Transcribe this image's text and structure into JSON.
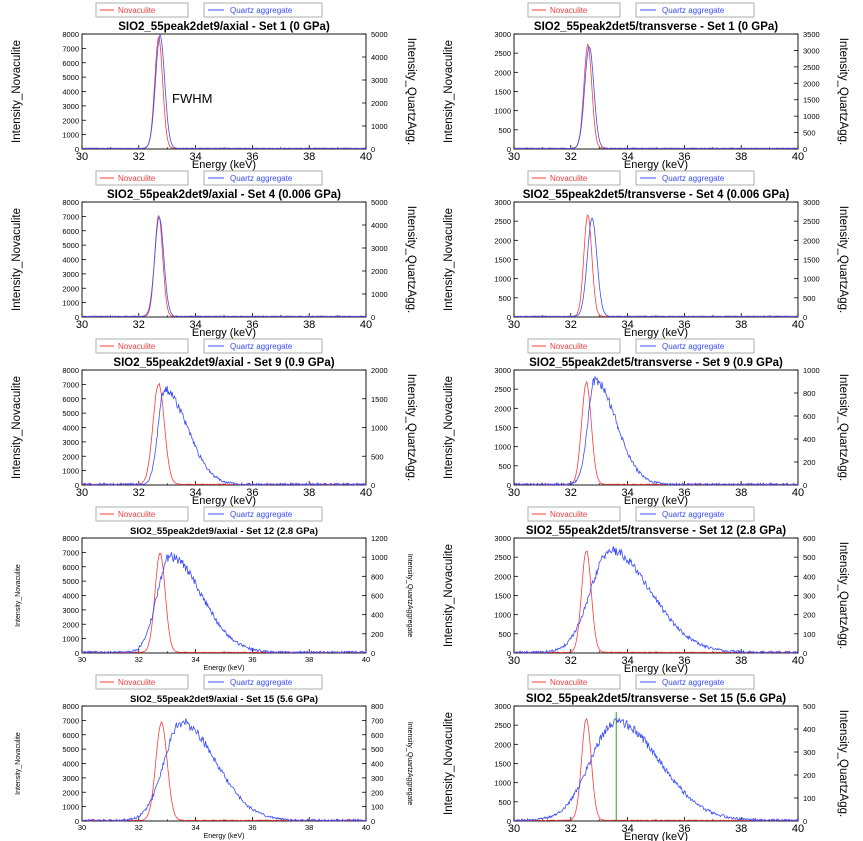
{
  "colors": {
    "novaculite": "#ff3a3a",
    "quartz": "#3a4cff",
    "fwhm": "#3a9a2a",
    "axis": "#000000"
  },
  "chart_data": [
    {
      "type": "line",
      "title": "SIO2_55peak2det9/axial - Set 1 (0 GPa)",
      "xlabel": "Energy (keV)",
      "ylabel": "Intensity_Novaculite",
      "y2label": "Intensity_QuartzAgg.",
      "xlim": [
        30,
        40
      ],
      "ylim": [
        0,
        8000
      ],
      "y2lim": [
        0,
        5000
      ],
      "x_ticks": [
        "30",
        "32",
        "34",
        "36",
        "38",
        "40"
      ],
      "y_ticks": [
        "0",
        "1000",
        "2000",
        "3000",
        "4000",
        "5000",
        "6000",
        "7000",
        "8000"
      ],
      "y2_ticks": [
        "0",
        "1000",
        "2000",
        "3000",
        "4000",
        "5000"
      ],
      "legend": [
        "Novaculite",
        "Quartz aggregate"
      ],
      "legend_position": "top",
      "annotation": "FWHM",
      "series": [
        {
          "name": "Novaculite",
          "axis": "left",
          "shape": "peak",
          "center": 32.7,
          "width": 0.14,
          "peak": 7700
        },
        {
          "name": "Quartz aggregate",
          "axis": "right",
          "shape": "peak",
          "center": 32.75,
          "width": 0.16,
          "peak": 4900
        }
      ]
    },
    {
      "type": "line",
      "title": "SIO2_55peak2det5/transverse - Set 1 (0 GPa)",
      "xlabel": "Energy (keV)",
      "ylabel": "Intensity_Novaculite",
      "y2label": "Intensity_QuartzAgg.",
      "xlim": [
        30,
        40
      ],
      "ylim": [
        0,
        3000
      ],
      "y2lim": [
        0,
        3500
      ],
      "x_ticks": [
        "30",
        "32",
        "34",
        "36",
        "38",
        "40"
      ],
      "y_ticks": [
        "0",
        "500",
        "1000",
        "1500",
        "2000",
        "2500",
        "3000"
      ],
      "y2_ticks": [
        "0",
        "500",
        "1000",
        "1500",
        "2000",
        "2500",
        "3000",
        "3500"
      ],
      "legend": [
        "Novaculite",
        "Quartz aggregate"
      ],
      "legend_position": "top",
      "series": [
        {
          "name": "Novaculite",
          "axis": "left",
          "shape": "peak",
          "center": 32.6,
          "width": 0.14,
          "peak": 2700
        },
        {
          "name": "Quartz aggregate",
          "axis": "right",
          "shape": "peak",
          "center": 32.65,
          "width": 0.16,
          "peak": 3100
        }
      ]
    },
    {
      "type": "line",
      "title": "SIO2_55peak2det9/axial - Set 4 (0.006 GPa)",
      "xlabel": "Energy (keV)",
      "ylabel": "Intensity_Novaculite",
      "y2label": "Intensity_QuartzAgg.",
      "xlim": [
        30,
        40
      ],
      "ylim": [
        0,
        8000
      ],
      "y2lim": [
        0,
        5000
      ],
      "x_ticks": [
        "30",
        "32",
        "34",
        "36",
        "38",
        "40"
      ],
      "y_ticks": [
        "0",
        "1000",
        "2000",
        "3000",
        "4000",
        "5000",
        "6000",
        "7000",
        "8000"
      ],
      "y2_ticks": [
        "0",
        "1000",
        "2000",
        "3000",
        "4000",
        "5000"
      ],
      "legend": [
        "Novaculite",
        "Quartz aggregate"
      ],
      "legend_position": "top",
      "series": [
        {
          "name": "Novaculite",
          "axis": "left",
          "shape": "peak",
          "center": 32.7,
          "width": 0.14,
          "peak": 7000
        },
        {
          "name": "Quartz aggregate",
          "axis": "right",
          "shape": "peak",
          "center": 32.72,
          "width": 0.16,
          "peak": 4300
        }
      ]
    },
    {
      "type": "line",
      "title": "SIO2_55peak2det5/transverse - Set 4 (0.006 GPa)",
      "xlabel": "Energy (keV)",
      "ylabel": "Intensity_Novaculite",
      "y2label": "Intensity_QuartzAgg.",
      "xlim": [
        30,
        40
      ],
      "ylim": [
        0,
        3000
      ],
      "y2lim": [
        0,
        3000
      ],
      "x_ticks": [
        "30",
        "32",
        "34",
        "36",
        "38",
        "40"
      ],
      "y_ticks": [
        "0",
        "500",
        "1000",
        "1500",
        "2000",
        "2500",
        "3000"
      ],
      "y2_ticks": [
        "0",
        "500",
        "1000",
        "1500",
        "2000",
        "2500",
        "3000"
      ],
      "legend": [
        "Novaculite",
        "Quartz aggregate"
      ],
      "legend_position": "top",
      "series": [
        {
          "name": "Novaculite",
          "axis": "left",
          "shape": "peak",
          "center": 32.6,
          "width": 0.14,
          "peak": 2650
        },
        {
          "name": "Quartz aggregate",
          "axis": "right",
          "shape": "peak",
          "center": 32.75,
          "width": 0.17,
          "peak": 2550
        }
      ]
    },
    {
      "type": "line",
      "title": "SIO2_55peak2det9/axial - Set 9 (0.9 GPa)",
      "xlabel": "Energy (keV)",
      "ylabel": "Intensity_Novaculite",
      "y2label": "Intensity_QuartzAgg.",
      "xlim": [
        30,
        40
      ],
      "ylim": [
        0,
        8000
      ],
      "y2lim": [
        0,
        2000
      ],
      "x_ticks": [
        "30",
        "32",
        "34",
        "36",
        "38",
        "40"
      ],
      "y_ticks": [
        "0",
        "1000",
        "2000",
        "3000",
        "4000",
        "5000",
        "6000",
        "7000",
        "8000"
      ],
      "y2_ticks": [
        "0",
        "500",
        "1000",
        "1500",
        "2000"
      ],
      "legend": [
        "Novaculite",
        "Quartz aggregate"
      ],
      "legend_position": "top",
      "series": [
        {
          "name": "Novaculite",
          "axis": "left",
          "shape": "peak",
          "center": 32.7,
          "width": 0.2,
          "peak": 7000
        },
        {
          "name": "Quartz aggregate",
          "axis": "right",
          "shape": "skew",
          "center": 32.9,
          "wl": 0.22,
          "wr": 0.8,
          "peak": 1650
        }
      ]
    },
    {
      "type": "line",
      "title": "SIO2_55peak2det5/transverse - Set 9 (0.9 GPa)",
      "xlabel": "Energy (keV)",
      "ylabel": "Intensity_Novaculite",
      "y2label": "Intensity_QuartzAgg.",
      "xlim": [
        30,
        40
      ],
      "ylim": [
        0,
        3000
      ],
      "y2lim": [
        0,
        1000
      ],
      "x_ticks": [
        "30",
        "32",
        "34",
        "36",
        "38",
        "40"
      ],
      "y_ticks": [
        "0",
        "500",
        "1000",
        "1500",
        "2000",
        "2500",
        "3000"
      ],
      "y2_ticks": [
        "0",
        "200",
        "400",
        "600",
        "800",
        "1000"
      ],
      "legend": [
        "Novaculite",
        "Quartz aggregate"
      ],
      "legend_position": "top",
      "series": [
        {
          "name": "Novaculite",
          "axis": "left",
          "shape": "peak",
          "center": 32.55,
          "width": 0.17,
          "peak": 2650
        },
        {
          "name": "Quartz aggregate",
          "axis": "right",
          "shape": "skew",
          "center": 32.85,
          "wl": 0.25,
          "wr": 0.75,
          "peak": 900
        }
      ]
    },
    {
      "type": "line",
      "title": "SIO2_55peak2det9/axial - Set 12 (2.8 GPa)",
      "xlabel": "Energy (keV)",
      "ylabel": "Intensity_Novaculite",
      "y2label": "Intensity_QuartzAggregate",
      "xlim": [
        30,
        40
      ],
      "ylim": [
        0,
        8000
      ],
      "y2lim": [
        0,
        1200
      ],
      "x_ticks": [
        "30",
        "32",
        "34",
        "36",
        "38",
        "40"
      ],
      "y_ticks": [
        "0",
        "1000",
        "2000",
        "3000",
        "4000",
        "5000",
        "6000",
        "7000",
        "8000"
      ],
      "y2_ticks": [
        "0",
        "200",
        "400",
        "600",
        "800",
        "1000",
        "1200"
      ],
      "legend": [
        "Novaculite",
        "Quartz aggregate"
      ],
      "legend_position": "top",
      "series": [
        {
          "name": "Novaculite",
          "axis": "left",
          "shape": "peak",
          "center": 32.75,
          "width": 0.18,
          "peak": 6900
        },
        {
          "name": "Quartz aggregate",
          "axis": "right",
          "shape": "skew",
          "center": 33.1,
          "wl": 0.45,
          "wr": 1.1,
          "peak": 1000
        }
      ]
    },
    {
      "type": "line",
      "title": "SIO2_55peak2det5/transverse - Set 12 (2.8 GPa)",
      "xlabel": "Energy (keV)",
      "ylabel": "Intensity_Novaculite",
      "y2label": "Intensity_QuartzAgg.",
      "xlim": [
        30,
        40
      ],
      "ylim": [
        0,
        3000
      ],
      "y2lim": [
        0,
        600
      ],
      "x_ticks": [
        "30",
        "32",
        "34",
        "36",
        "38",
        "40"
      ],
      "y_ticks": [
        "0",
        "500",
        "1000",
        "1500",
        "2000",
        "2500",
        "3000"
      ],
      "y2_ticks": [
        "0",
        "100",
        "200",
        "300",
        "400",
        "500",
        "600"
      ],
      "legend": [
        "Novaculite",
        "Quartz aggregate"
      ],
      "legend_position": "top",
      "series": [
        {
          "name": "Novaculite",
          "axis": "left",
          "shape": "peak",
          "center": 32.55,
          "width": 0.17,
          "peak": 2650
        },
        {
          "name": "Quartz aggregate",
          "axis": "right",
          "shape": "skew",
          "center": 33.4,
          "wl": 0.7,
          "wr": 1.4,
          "peak": 530
        }
      ]
    },
    {
      "type": "line",
      "title": "SIO2_55peak2det9/axial - Set 15 (5.6 GPa)",
      "xlabel": "Energy (keV)",
      "ylabel": "Intensity_Novaculite",
      "y2label": "Intensity_QuartzAggregate",
      "xlim": [
        30,
        40
      ],
      "ylim": [
        0,
        8000
      ],
      "y2lim": [
        0,
        800
      ],
      "x_ticks": [
        "30",
        "32",
        "34",
        "36",
        "38",
        "40"
      ],
      "y_ticks": [
        "0",
        "1000",
        "2000",
        "3000",
        "4000",
        "5000",
        "6000",
        "7000",
        "8000"
      ],
      "y2_ticks": [
        "0",
        "100",
        "200",
        "300",
        "400",
        "500",
        "600",
        "700",
        "800"
      ],
      "legend": [
        "Novaculite",
        "Quartz aggregate"
      ],
      "legend_position": "top",
      "series": [
        {
          "name": "Novaculite",
          "axis": "left",
          "shape": "peak",
          "center": 32.8,
          "width": 0.2,
          "peak": 6800
        },
        {
          "name": "Quartz aggregate",
          "axis": "right",
          "shape": "skew",
          "center": 33.5,
          "wl": 0.6,
          "wr": 1.2,
          "peak": 680
        }
      ]
    },
    {
      "type": "line",
      "title": "SIO2_55peak2det5/transverse - Set 15 (5.6 GPa)",
      "xlabel": "Energy (keV)",
      "ylabel": "Intensity_Novaculite",
      "y2label": "Intensity_QuartzAgg.",
      "xlim": [
        30,
        40
      ],
      "ylim": [
        0,
        3000
      ],
      "y2lim": [
        0,
        500
      ],
      "x_ticks": [
        "30",
        "32",
        "34",
        "36",
        "38",
        "40"
      ],
      "y_ticks": [
        "0",
        "500",
        "1000",
        "1500",
        "2000",
        "2500",
        "3000"
      ],
      "y2_ticks": [
        "0",
        "100",
        "200",
        "300",
        "400",
        "500"
      ],
      "legend": [
        "Novaculite",
        "Quartz aggregate"
      ],
      "legend_position": "top",
      "marker_line_x": 33.6,
      "series": [
        {
          "name": "Novaculite",
          "axis": "left",
          "shape": "peak",
          "center": 32.55,
          "width": 0.17,
          "peak": 2650
        },
        {
          "name": "Quartz aggregate",
          "axis": "right",
          "shape": "skew",
          "center": 33.6,
          "wl": 0.9,
          "wr": 1.5,
          "peak": 430
        }
      ]
    }
  ]
}
